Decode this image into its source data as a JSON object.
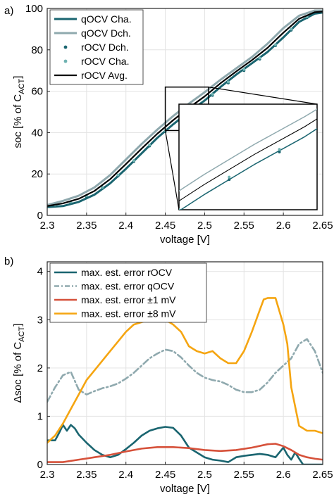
{
  "panels": [
    {
      "label": "a)",
      "chart_data": {
        "type": "line",
        "xlabel": "voltage [V]",
        "ylabel": "soc [% of C_ACT]",
        "xlim": [
          2.3,
          2.65
        ],
        "ylim": [
          0,
          100
        ],
        "xticks": [
          "2.3",
          "2.35",
          "2.4",
          "2.45",
          "2.5",
          "2.55",
          "2.6",
          "2.65"
        ],
        "yticks": [
          "0",
          "20",
          "40",
          "60",
          "80",
          "100"
        ],
        "grid": true,
        "legend_position": "top-left",
        "series": [
          {
            "name": "qOCV Cha.",
            "style": "line",
            "color": "#1a6570",
            "width": 3,
            "x": [
              2.3,
              2.32,
              2.34,
              2.36,
              2.38,
              2.4,
              2.42,
              2.44,
              2.46,
              2.48,
              2.5,
              2.52,
              2.54,
              2.56,
              2.58,
              2.6,
              2.62,
              2.64,
              2.65
            ],
            "y": [
              4,
              4.5,
              6.5,
              10,
              15.5,
              22.5,
              30,
              37.5,
              44,
              50,
              55.5,
              62,
              68,
              73.5,
              79,
              86,
              93.5,
              97.5,
              98
            ]
          },
          {
            "name": "qOCV Dch.",
            "style": "line",
            "color": "#8fa9ae",
            "width": 3,
            "x": [
              2.3,
              2.32,
              2.34,
              2.36,
              2.38,
              2.4,
              2.42,
              2.44,
              2.46,
              2.48,
              2.5,
              2.52,
              2.54,
              2.56,
              2.58,
              2.6,
              2.62,
              2.64,
              2.65
            ],
            "y": [
              5,
              7,
              9.5,
              13.5,
              19.5,
              27,
              34.5,
              41.5,
              48,
              54,
              59.5,
              65.5,
              71,
              76.5,
              83,
              90.5,
              96.5,
              99,
              99
            ]
          },
          {
            "name": "rOCV Dch.",
            "style": "markers",
            "color": "#1a6570",
            "x": [
              2.31,
              2.33,
              2.35,
              2.37,
              2.39,
              2.41,
              2.43,
              2.45,
              2.47,
              2.49,
              2.51,
              2.53,
              2.55,
              2.57,
              2.59,
              2.61,
              2.63
            ],
            "y": [
              4.5,
              6,
              9,
              13,
              19,
              26,
              33.5,
              40.5,
              47,
              52.5,
              58,
              64,
              70,
              75.5,
              82,
              89.5,
              95.5
            ]
          },
          {
            "name": "rOCV Cha.",
            "style": "markers",
            "color": "#6fb3b2",
            "x": [
              2.31,
              2.33,
              2.35,
              2.37,
              2.39,
              2.41,
              2.43,
              2.45,
              2.47,
              2.49,
              2.51,
              2.53,
              2.55,
              2.57,
              2.59,
              2.61,
              2.63
            ],
            "y": [
              5,
              6.5,
              9.5,
              13.5,
              19.5,
              26.5,
              34,
              41,
              47.5,
              53,
              58.5,
              64.5,
              70.5,
              76,
              82.5,
              90,
              96
            ]
          },
          {
            "name": "rOCV Avg.",
            "style": "line",
            "color": "#000000",
            "width": 2.2,
            "x": [
              2.3,
              2.32,
              2.34,
              2.36,
              2.38,
              2.4,
              2.42,
              2.44,
              2.46,
              2.48,
              2.5,
              2.52,
              2.54,
              2.56,
              2.58,
              2.6,
              2.62,
              2.64,
              2.65
            ],
            "y": [
              4.5,
              5.8,
              8,
              11.8,
              17.5,
              24.8,
              32.3,
              39.5,
              46,
              52,
              57.5,
              63.8,
              69.5,
              75,
              81,
              88.3,
              95,
              98.2,
              98.5
            ]
          }
        ]
      }
    },
    {
      "label": "b)",
      "chart_data": {
        "type": "line",
        "xlabel": "voltage [V]",
        "ylabel": "Δsoc [% of C_ACT]",
        "xlim": [
          2.3,
          2.65
        ],
        "ylim": [
          0,
          4.2
        ],
        "xticks": [
          "2.3",
          "2.35",
          "2.4",
          "2.45",
          "2.5",
          "2.55",
          "2.6",
          "2.65"
        ],
        "yticks": [
          "0",
          "1",
          "2",
          "3",
          "4"
        ],
        "grid": true,
        "legend_position": "top-left",
        "series": [
          {
            "name": "max. est. error rOCV",
            "style": "line",
            "color": "#1a6570",
            "width": 2.6,
            "x": [
              2.3,
              2.31,
              2.315,
              2.32,
              2.325,
              2.33,
              2.335,
              2.34,
              2.35,
              2.36,
              2.37,
              2.38,
              2.39,
              2.4,
              2.41,
              2.42,
              2.43,
              2.44,
              2.45,
              2.46,
              2.47,
              2.48,
              2.49,
              2.5,
              2.51,
              2.52,
              2.53,
              2.54,
              2.55,
              2.56,
              2.57,
              2.58,
              2.59,
              2.595,
              2.6,
              2.605,
              2.61,
              2.615,
              2.62,
              2.625,
              2.63,
              2.65
            ],
            "y": [
              0.5,
              0.5,
              0.65,
              0.82,
              0.7,
              0.82,
              0.75,
              0.62,
              0.45,
              0.3,
              0.2,
              0.15,
              0.2,
              0.32,
              0.45,
              0.6,
              0.7,
              0.75,
              0.78,
              0.76,
              0.6,
              0.35,
              0.25,
              0.15,
              0.1,
              0.08,
              0.05,
              0.15,
              0.18,
              0.2,
              0.22,
              0.2,
              0.15,
              0.25,
              0.35,
              0.2,
              0.1,
              0.25,
              0.12,
              0.0,
              0.0,
              0.0
            ]
          },
          {
            "name": "max. est. error qOCV",
            "style": "dashdot",
            "color": "#8fa9ae",
            "width": 2.6,
            "x": [
              2.3,
              2.31,
              2.32,
              2.33,
              2.34,
              2.35,
              2.36,
              2.37,
              2.38,
              2.39,
              2.4,
              2.41,
              2.42,
              2.43,
              2.44,
              2.45,
              2.46,
              2.47,
              2.48,
              2.49,
              2.5,
              2.51,
              2.52,
              2.53,
              2.54,
              2.55,
              2.56,
              2.57,
              2.58,
              2.59,
              2.6,
              2.61,
              2.62,
              2.63,
              2.64,
              2.65
            ],
            "y": [
              1.3,
              1.6,
              1.85,
              1.92,
              1.55,
              1.45,
              1.52,
              1.58,
              1.62,
              1.68,
              1.78,
              1.9,
              2.05,
              2.2,
              2.3,
              2.38,
              2.35,
              2.22,
              2.05,
              1.9,
              1.8,
              1.75,
              1.72,
              1.65,
              1.55,
              1.5,
              1.5,
              1.55,
              1.7,
              1.9,
              2.05,
              2.2,
              2.5,
              2.6,
              2.35,
              1.9
            ]
          },
          {
            "name": "max. est. error ±1 mV",
            "style": "line",
            "color": "#d6513a",
            "width": 2.6,
            "x": [
              2.3,
              2.32,
              2.34,
              2.36,
              2.38,
              2.4,
              2.42,
              2.44,
              2.46,
              2.48,
              2.5,
              2.52,
              2.54,
              2.56,
              2.58,
              2.59,
              2.6,
              2.61,
              2.62,
              2.63,
              2.64,
              2.65
            ],
            "y": [
              0.05,
              0.05,
              0.1,
              0.15,
              0.2,
              0.27,
              0.33,
              0.36,
              0.36,
              0.34,
              0.3,
              0.28,
              0.3,
              0.35,
              0.42,
              0.43,
              0.38,
              0.3,
              0.2,
              0.15,
              0.12,
              0.1
            ]
          },
          {
            "name": "max. est. error ±8 mV",
            "style": "line",
            "color": "#f5a511",
            "width": 2.6,
            "x": [
              2.3,
              2.31,
              2.32,
              2.33,
              2.34,
              2.35,
              2.36,
              2.37,
              2.38,
              2.39,
              2.4,
              2.41,
              2.42,
              2.43,
              2.44,
              2.45,
              2.46,
              2.47,
              2.48,
              2.49,
              2.5,
              2.51,
              2.52,
              2.53,
              2.54,
              2.55,
              2.56,
              2.57,
              2.575,
              2.58,
              2.59,
              2.6,
              2.605,
              2.61,
              2.62,
              2.63,
              2.64,
              2.65
            ],
            "y": [
              0.45,
              0.6,
              0.85,
              1.15,
              1.45,
              1.75,
              1.95,
              2.15,
              2.35,
              2.55,
              2.75,
              2.9,
              2.95,
              3.0,
              3.02,
              3.0,
              2.9,
              2.75,
              2.45,
              2.35,
              2.3,
              2.35,
              2.2,
              2.1,
              2.1,
              2.35,
              2.75,
              3.2,
              3.42,
              3.45,
              3.45,
              2.9,
              2.5,
              1.6,
              0.8,
              0.7,
              0.7,
              0.65
            ]
          }
        ]
      }
    }
  ],
  "colors": {
    "axis": "#262626",
    "grid": "#e3e3e3",
    "zoom_box": "#000000"
  }
}
